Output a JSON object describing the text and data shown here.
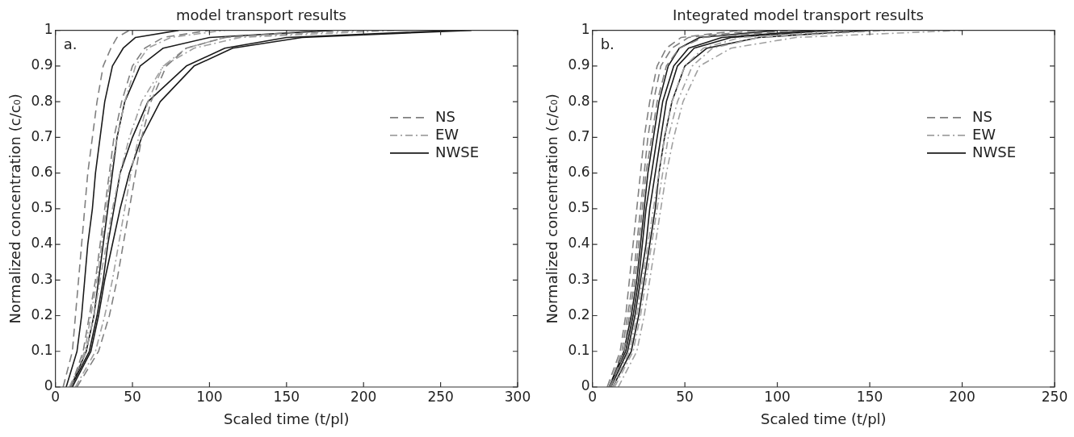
{
  "chart_data": [
    {
      "type": "line",
      "title": "model transport results",
      "xlabel": "Scaled time (t/pl)",
      "ylabel": "Normalized concentration (c/c₀)",
      "annotations": [
        "a."
      ],
      "xlim": [
        0,
        300
      ],
      "xticks": [
        0,
        50,
        100,
        150,
        200,
        250,
        300
      ],
      "ylim": [
        0,
        1
      ],
      "yticks": [
        0,
        0.1,
        0.2,
        0.3,
        0.4,
        0.5,
        0.6,
        0.7,
        0.8,
        0.9,
        1
      ],
      "grid": false,
      "legend": "right",
      "marker": "none",
      "series": [
        {
          "name": "NS",
          "color": "#808080",
          "line_style": "dashed",
          "x": [
            5,
            11,
            13,
            15,
            17,
            19,
            21,
            24,
            27,
            31,
            36,
            40,
            48
          ],
          "values": [
            0,
            0.1,
            0.2,
            0.3,
            0.4,
            0.5,
            0.6,
            0.7,
            0.8,
            0.9,
            0.95,
            0.98,
            1
          ]
        },
        {
          "color": "#808080",
          "line_style": "dashed",
          "x": [
            10,
            18,
            22,
            26,
            29,
            32,
            35,
            38,
            43,
            50,
            58,
            70,
            100
          ],
          "values": [
            0,
            0.1,
            0.2,
            0.3,
            0.4,
            0.5,
            0.6,
            0.7,
            0.8,
            0.9,
            0.95,
            0.98,
            1
          ]
        },
        {
          "color": "#808080",
          "line_style": "dashed",
          "x": [
            14,
            28,
            35,
            40,
            44,
            48,
            52,
            56,
            62,
            72,
            85,
            110,
            170
          ],
          "values": [
            0,
            0.1,
            0.2,
            0.3,
            0.4,
            0.5,
            0.6,
            0.7,
            0.8,
            0.9,
            0.95,
            0.98,
            1
          ]
        },
        {
          "name": "EW",
          "color": "#a0a0a0",
          "line_style": "dashdot",
          "x": [
            10,
            19,
            23,
            27,
            30,
            33,
            36,
            40,
            45,
            52,
            60,
            75,
            110
          ],
          "values": [
            0,
            0.1,
            0.2,
            0.3,
            0.4,
            0.5,
            0.6,
            0.7,
            0.8,
            0.9,
            0.95,
            0.98,
            1
          ]
        },
        {
          "color": "#a0a0a0",
          "line_style": "dashdot",
          "x": [
            13,
            26,
            32,
            37,
            41,
            45,
            49,
            54,
            60,
            70,
            85,
            110,
            200
          ],
          "values": [
            0,
            0.1,
            0.2,
            0.3,
            0.4,
            0.5,
            0.6,
            0.7,
            0.8,
            0.9,
            0.95,
            0.98,
            1
          ]
        },
        {
          "color": "#a0a0a0",
          "line_style": "dashdot",
          "x": [
            9,
            20,
            25,
            29,
            33,
            37,
            42,
            48,
            56,
            70,
            90,
            120,
            220
          ],
          "values": [
            0,
            0.1,
            0.2,
            0.3,
            0.4,
            0.5,
            0.6,
            0.7,
            0.8,
            0.9,
            0.95,
            0.98,
            1
          ]
        },
        {
          "name": "NWSE",
          "color": "#1a1a1a",
          "line_style": "solid",
          "x": [
            7,
            14,
            17,
            19,
            21,
            24,
            26,
            29,
            32,
            37,
            44,
            52,
            80
          ],
          "values": [
            0,
            0.1,
            0.2,
            0.3,
            0.4,
            0.5,
            0.6,
            0.7,
            0.8,
            0.9,
            0.95,
            0.98,
            1
          ]
        },
        {
          "color": "#1a1a1a",
          "line_style": "solid",
          "x": [
            10,
            20,
            25,
            28,
            31,
            34,
            37,
            40,
            45,
            55,
            70,
            100,
            180
          ],
          "values": [
            0,
            0.1,
            0.2,
            0.3,
            0.4,
            0.5,
            0.6,
            0.7,
            0.8,
            0.9,
            0.95,
            0.98,
            1
          ]
        },
        {
          "color": "#1a1a1a",
          "line_style": "solid",
          "x": [
            10,
            22,
            27,
            31,
            34,
            38,
            42,
            50,
            60,
            85,
            110,
            150,
            260
          ],
          "values": [
            0,
            0.1,
            0.2,
            0.3,
            0.4,
            0.5,
            0.6,
            0.7,
            0.8,
            0.9,
            0.95,
            0.98,
            1
          ]
        },
        {
          "color": "#1a1a1a",
          "line_style": "solid",
          "x": [
            11,
            23,
            28,
            32,
            37,
            42,
            48,
            56,
            68,
            90,
            115,
            160,
            270
          ],
          "values": [
            0,
            0.1,
            0.2,
            0.3,
            0.4,
            0.5,
            0.6,
            0.7,
            0.8,
            0.9,
            0.95,
            0.98,
            1
          ]
        }
      ]
    },
    {
      "type": "line",
      "title": "Integrated model transport results",
      "xlabel": "Scaled time (t/pl)",
      "ylabel": "Normalized concentration (c/c₀)",
      "annotations": [
        "b."
      ],
      "xlim": [
        0,
        250
      ],
      "xticks": [
        0,
        50,
        100,
        150,
        200,
        250
      ],
      "ylim": [
        0,
        1
      ],
      "yticks": [
        0,
        0.1,
        0.2,
        0.3,
        0.4,
        0.5,
        0.6,
        0.7,
        0.8,
        0.9,
        1
      ],
      "grid": false,
      "legend": "right",
      "marker": "none",
      "series": [
        {
          "name": "NS",
          "color": "#808080",
          "line_style": "dashed",
          "x": [
            8,
            15,
            18,
            20,
            22,
            24,
            26,
            28,
            31,
            35,
            40,
            48,
            80
          ],
          "values": [
            0,
            0.1,
            0.2,
            0.3,
            0.4,
            0.5,
            0.6,
            0.7,
            0.8,
            0.9,
            0.95,
            0.98,
            1
          ]
        },
        {
          "color": "#808080",
          "line_style": "dashed",
          "x": [
            9,
            16,
            19,
            22,
            24,
            26,
            28,
            30,
            33,
            37,
            43,
            52,
            90
          ],
          "values": [
            0,
            0.1,
            0.2,
            0.3,
            0.4,
            0.5,
            0.6,
            0.7,
            0.8,
            0.9,
            0.95,
            0.98,
            1
          ]
        },
        {
          "color": "#808080",
          "line_style": "dashed",
          "x": [
            10,
            17,
            20,
            23,
            25,
            27,
            29,
            32,
            35,
            40,
            47,
            60,
            110
          ],
          "values": [
            0,
            0.1,
            0.2,
            0.3,
            0.4,
            0.5,
            0.6,
            0.7,
            0.8,
            0.9,
            0.95,
            0.98,
            1
          ]
        },
        {
          "name": "EW",
          "color": "#a0a0a0",
          "line_style": "dashdot",
          "x": [
            12,
            22,
            26,
            29,
            32,
            35,
            38,
            41,
            46,
            54,
            65,
            90,
            160
          ],
          "values": [
            0,
            0.1,
            0.2,
            0.3,
            0.4,
            0.5,
            0.6,
            0.7,
            0.8,
            0.9,
            0.95,
            0.98,
            1
          ]
        },
        {
          "color": "#a0a0a0",
          "line_style": "dashdot",
          "x": [
            14,
            24,
            28,
            31,
            34,
            37,
            40,
            44,
            49,
            58,
            75,
            110,
            200
          ],
          "values": [
            0,
            0.1,
            0.2,
            0.3,
            0.4,
            0.5,
            0.6,
            0.7,
            0.8,
            0.9,
            0.95,
            0.98,
            1
          ]
        },
        {
          "color": "#a0a0a0",
          "line_style": "dashdot",
          "x": [
            11,
            20,
            24,
            27,
            30,
            33,
            36,
            39,
            43,
            50,
            60,
            80,
            140
          ],
          "values": [
            0,
            0.1,
            0.2,
            0.3,
            0.4,
            0.5,
            0.6,
            0.7,
            0.8,
            0.9,
            0.95,
            0.98,
            1
          ]
        },
        {
          "name": "NWSE",
          "color": "#1a1a1a",
          "line_style": "solid",
          "x": [
            9,
            17,
            21,
            24,
            26,
            28,
            30,
            33,
            36,
            41,
            47,
            58,
            100
          ],
          "values": [
            0,
            0.1,
            0.2,
            0.3,
            0.4,
            0.5,
            0.6,
            0.7,
            0.8,
            0.9,
            0.95,
            0.98,
            1
          ]
        },
        {
          "color": "#1a1a1a",
          "line_style": "solid",
          "x": [
            9,
            18,
            22,
            25,
            27,
            29,
            32,
            35,
            38,
            44,
            52,
            70,
            120
          ],
          "values": [
            0,
            0.1,
            0.2,
            0.3,
            0.4,
            0.5,
            0.6,
            0.7,
            0.8,
            0.9,
            0.95,
            0.98,
            1
          ]
        },
        {
          "color": "#1a1a1a",
          "line_style": "solid",
          "x": [
            11,
            21,
            25,
            28,
            31,
            34,
            36,
            39,
            43,
            50,
            62,
            90,
            150
          ],
          "values": [
            0,
            0.1,
            0.2,
            0.3,
            0.4,
            0.5,
            0.6,
            0.7,
            0.8,
            0.9,
            0.95,
            0.98,
            1
          ]
        },
        {
          "color": "#1a1a1a",
          "line_style": "solid",
          "x": [
            10,
            19,
            23,
            26,
            29,
            31,
            34,
            37,
            40,
            46,
            55,
            75,
            130
          ],
          "values": [
            0,
            0.1,
            0.2,
            0.3,
            0.4,
            0.5,
            0.6,
            0.7,
            0.8,
            0.9,
            0.95,
            0.98,
            1
          ]
        }
      ]
    }
  ]
}
